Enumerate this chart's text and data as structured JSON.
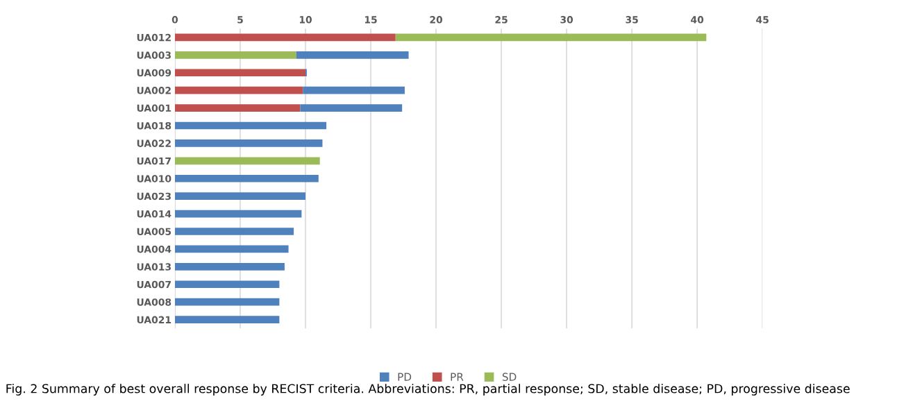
{
  "chart_data": {
    "type": "bar",
    "orientation": "horizontal",
    "stacked": true,
    "categories": [
      "UA012",
      "UA003",
      "UA009",
      "UA002",
      "UA001",
      "UA018",
      "UA022",
      "UA017",
      "UA010",
      "UA023",
      "UA014",
      "UA005",
      "UA004",
      "UA013",
      "UA007",
      "UA008",
      "UA021"
    ],
    "series": [
      {
        "name": "PR",
        "color": "#c0504d",
        "values": [
          16.9,
          null,
          10.0,
          9.8,
          9.6,
          null,
          null,
          null,
          null,
          null,
          null,
          null,
          null,
          null,
          null,
          null,
          null
        ]
      },
      {
        "name": "SD",
        "color": "#9bbb59",
        "values": [
          23.8,
          9.3,
          null,
          null,
          null,
          null,
          null,
          11.1,
          null,
          null,
          null,
          null,
          null,
          null,
          null,
          null,
          null
        ]
      },
      {
        "name": "PD",
        "color": "#4f81bd",
        "values": [
          null,
          8.6,
          0.1,
          7.8,
          7.8,
          11.6,
          11.3,
          null,
          11.0,
          10.0,
          9.7,
          9.1,
          8.7,
          8.4,
          8.0,
          8.0,
          8.0
        ]
      }
    ],
    "xlim": [
      0,
      45
    ],
    "xticks": [
      0,
      5,
      10,
      15,
      20,
      25,
      30,
      35,
      40,
      45
    ],
    "grid": "x",
    "legend": "bottom",
    "annotations": [
      "Fig. 2 Summary of best overall response by RECIST criteria. Abbreviations: PR, partial response; SD, stable disease; PD, progressive disease"
    ]
  }
}
